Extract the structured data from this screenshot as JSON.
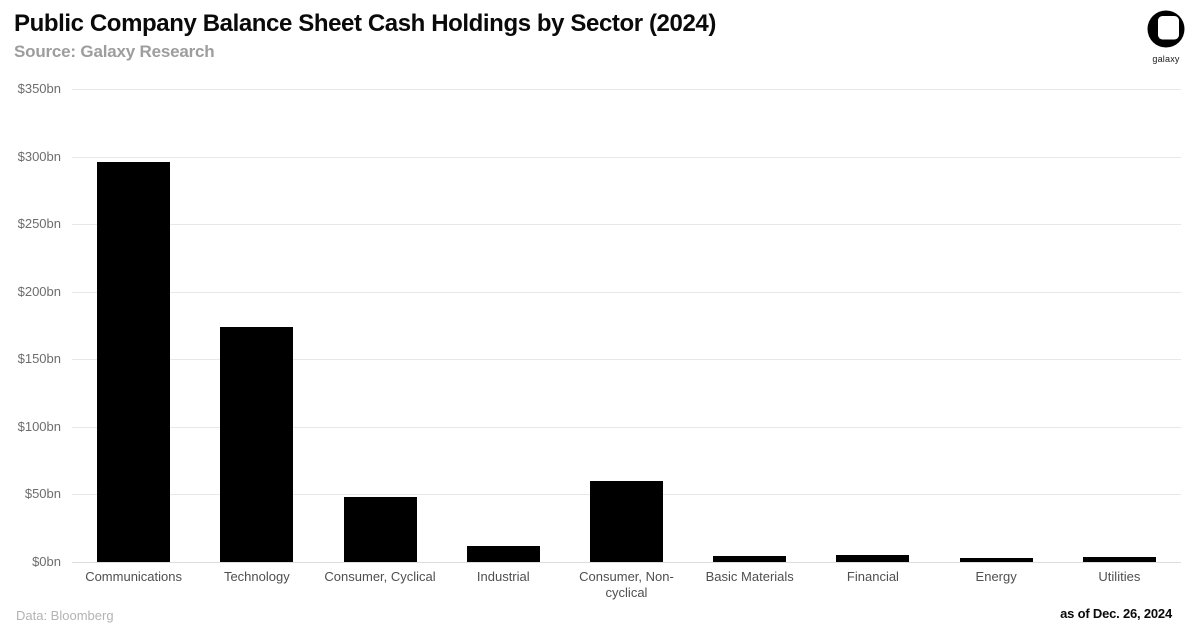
{
  "header": {
    "title": "Public Company Balance Sheet Cash Holdings by Sector (2024)",
    "subtitle": "Source: Galaxy Research"
  },
  "logo": {
    "label": "galaxy"
  },
  "footer": {
    "data_source": "Data: Bloomberg",
    "as_of": "as of Dec. 26, 2024"
  },
  "chart_data": {
    "type": "bar",
    "title": "Public Company Balance Sheet Cash Holdings by Sector (2024)",
    "categories": [
      "Communications",
      "Technology",
      "Consumer, Cyclical",
      "Industrial",
      "Consumer, Non-cyclical",
      "Basic Materials",
      "Financial",
      "Energy",
      "Utilities"
    ],
    "values": [
      296,
      174,
      48,
      12,
      60,
      4.5,
      5,
      3,
      4
    ],
    "xlabel": "",
    "ylabel": "",
    "ylim": [
      0,
      350
    ],
    "ytick_step": 50,
    "ytick_prefix": "$",
    "ytick_suffix": "bn",
    "grid": "horizontal",
    "legend": "none",
    "bar_color": "#000000",
    "colors": {
      "grid": "#e8e8e8",
      "axis": "#dddddd",
      "ytick_label": "#6d6d6d",
      "xtick_label": "#4f4f4f"
    }
  }
}
